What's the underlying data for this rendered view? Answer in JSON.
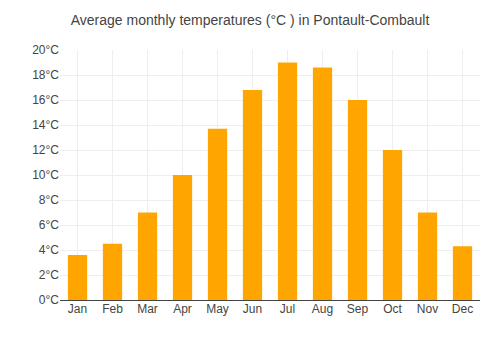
{
  "chart_data": {
    "type": "bar",
    "title": "Average monthly temperatures (°C ) in Pontault-Combault",
    "categories": [
      "Jan",
      "Feb",
      "Mar",
      "Apr",
      "May",
      "Jun",
      "Jul",
      "Aug",
      "Sep",
      "Oct",
      "Nov",
      "Dec"
    ],
    "values": [
      3.6,
      4.5,
      7.0,
      10.0,
      13.7,
      16.8,
      19.0,
      18.6,
      16.0,
      12.0,
      7.0,
      4.3
    ],
    "color": "#FFA500",
    "ylim": [
      0,
      20
    ],
    "yticks": [
      {
        "value": 0,
        "label": "0°C"
      },
      {
        "value": 2,
        "label": "2°C"
      },
      {
        "value": 4,
        "label": "4°C"
      },
      {
        "value": 6,
        "label": "6°C"
      },
      {
        "value": 8,
        "label": "8°C"
      },
      {
        "value": 10,
        "label": "10°C"
      },
      {
        "value": 12,
        "label": "12°C"
      },
      {
        "value": 14,
        "label": "14°C"
      },
      {
        "value": 16,
        "label": "16°C"
      },
      {
        "value": 18,
        "label": "18°C"
      },
      {
        "value": 20,
        "label": "20°C"
      }
    ],
    "grid": true
  }
}
